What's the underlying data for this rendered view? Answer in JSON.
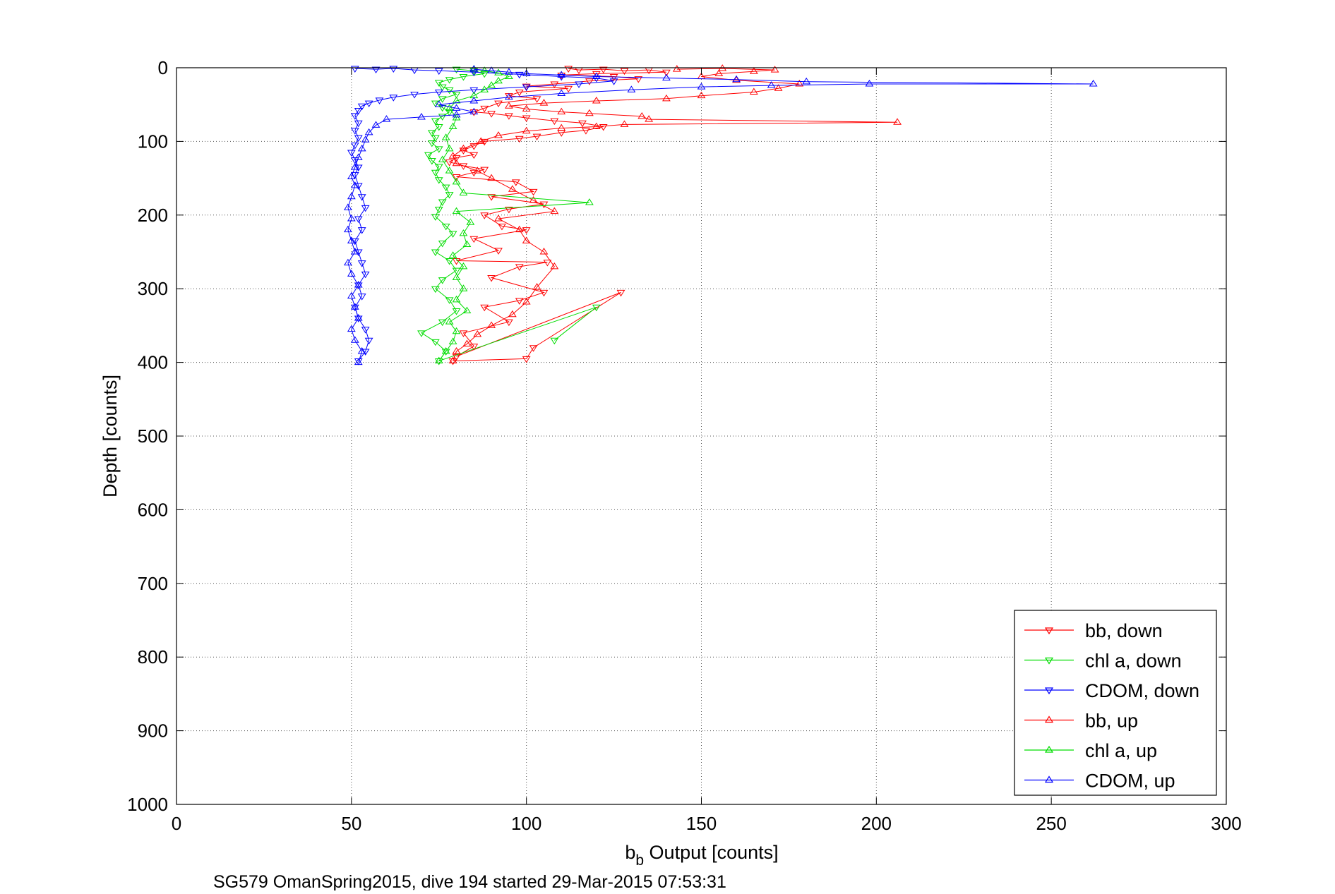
{
  "chart_data": {
    "type": "scatter",
    "title": "",
    "xlabel_main": "b",
    "xlabel_sub": "b",
    "xlabel_rest": " Output [counts]",
    "ylabel": "Depth [counts]",
    "caption": "SG579 OmanSpring2015, dive 194 started 29-Mar-2015 07:53:31",
    "xlim": [
      0,
      300
    ],
    "ylim": [
      0,
      1000
    ],
    "y_reversed": true,
    "grid": true,
    "legend_position": "bottom-right",
    "xticks": [
      "0",
      "50",
      "100",
      "150",
      "200",
      "250",
      "300"
    ],
    "yticks": [
      "0",
      "100",
      "200",
      "300",
      "400",
      "500",
      "600",
      "700",
      "800",
      "900",
      "1000"
    ],
    "series": [
      {
        "name": "bb, down",
        "color": "#ff0000",
        "marker": "triangle-down",
        "connected": true,
        "points": [
          [
            112,
            1
          ],
          [
            115,
            3
          ],
          [
            122,
            2
          ],
          [
            128,
            4
          ],
          [
            135,
            3
          ],
          [
            140,
            6
          ],
          [
            120,
            8
          ],
          [
            110,
            10
          ],
          [
            125,
            12
          ],
          [
            132,
            15
          ],
          [
            118,
            18
          ],
          [
            108,
            22
          ],
          [
            100,
            25
          ],
          [
            112,
            28
          ],
          [
            98,
            33
          ],
          [
            95,
            38
          ],
          [
            103,
            42
          ],
          [
            92,
            48
          ],
          [
            88,
            55
          ],
          [
            85,
            60
          ],
          [
            90,
            62
          ],
          [
            95,
            65
          ],
          [
            100,
            68
          ],
          [
            108,
            72
          ],
          [
            116,
            75
          ],
          [
            122,
            80
          ],
          [
            117,
            85
          ],
          [
            110,
            88
          ],
          [
            103,
            93
          ],
          [
            98,
            96
          ],
          [
            88,
            100
          ],
          [
            85,
            106
          ],
          [
            82,
            112
          ],
          [
            85,
            118
          ],
          [
            80,
            122
          ],
          [
            78,
            128
          ],
          [
            82,
            133
          ],
          [
            88,
            138
          ],
          [
            85,
            142
          ],
          [
            80,
            148
          ],
          [
            97,
            155
          ],
          [
            102,
            168
          ],
          [
            90,
            175
          ],
          [
            105,
            185
          ],
          [
            95,
            192
          ],
          [
            88,
            200
          ],
          [
            93,
            215
          ],
          [
            100,
            220
          ],
          [
            85,
            232
          ],
          [
            92,
            248
          ],
          [
            80,
            262
          ],
          [
            106,
            264
          ],
          [
            98,
            270
          ],
          [
            90,
            285
          ],
          [
            105,
            305
          ],
          [
            98,
            316
          ],
          [
            88,
            325
          ],
          [
            95,
            345
          ],
          [
            82,
            360
          ],
          [
            85,
            378
          ],
          [
            80,
            392
          ],
          [
            127,
            305
          ],
          [
            102,
            380
          ],
          [
            100,
            395
          ],
          [
            79,
            398
          ]
        ]
      },
      {
        "name": "chl a, down",
        "color": "#00dd00",
        "marker": "triangle-down",
        "connected": true,
        "points": [
          [
            80,
            2
          ],
          [
            85,
            4
          ],
          [
            88,
            8
          ],
          [
            82,
            12
          ],
          [
            78,
            16
          ],
          [
            75,
            20
          ],
          [
            76,
            26
          ],
          [
            78,
            30
          ],
          [
            80,
            36
          ],
          [
            76,
            42
          ],
          [
            74,
            48
          ],
          [
            76,
            54
          ],
          [
            78,
            60
          ],
          [
            76,
            66
          ],
          [
            74,
            72
          ],
          [
            75,
            80
          ],
          [
            73,
            88
          ],
          [
            74,
            95
          ],
          [
            73,
            102
          ],
          [
            75,
            110
          ],
          [
            72,
            118
          ],
          [
            73,
            126
          ],
          [
            75,
            134
          ],
          [
            74,
            142
          ],
          [
            75,
            152
          ],
          [
            77,
            162
          ],
          [
            78,
            172
          ],
          [
            76,
            182
          ],
          [
            75,
            192
          ],
          [
            74,
            202
          ],
          [
            77,
            215
          ],
          [
            79,
            225
          ],
          [
            76,
            238
          ],
          [
            74,
            250
          ],
          [
            78,
            262
          ],
          [
            80,
            275
          ],
          [
            76,
            288
          ],
          [
            74,
            300
          ],
          [
            78,
            315
          ],
          [
            80,
            330
          ],
          [
            76,
            345
          ],
          [
            70,
            360
          ],
          [
            74,
            372
          ],
          [
            77,
            385
          ],
          [
            75,
            398
          ],
          [
            120,
            325
          ],
          [
            108,
            370
          ]
        ]
      },
      {
        "name": "CDOM, down",
        "color": "#0000ff",
        "marker": "triangle-down",
        "connected": true,
        "points": [
          [
            51,
            1
          ],
          [
            57,
            2
          ],
          [
            62,
            1
          ],
          [
            68,
            3
          ],
          [
            75,
            4
          ],
          [
            85,
            6
          ],
          [
            98,
            9
          ],
          [
            110,
            12
          ],
          [
            120,
            14
          ],
          [
            125,
            18
          ],
          [
            115,
            22
          ],
          [
            100,
            26
          ],
          [
            85,
            30
          ],
          [
            75,
            33
          ],
          [
            68,
            36
          ],
          [
            62,
            40
          ],
          [
            58,
            44
          ],
          [
            55,
            48
          ],
          [
            53,
            52
          ],
          [
            52,
            58
          ],
          [
            51,
            65
          ],
          [
            52,
            75
          ],
          [
            51,
            85
          ],
          [
            52,
            95
          ],
          [
            51,
            105
          ],
          [
            50,
            115
          ],
          [
            51,
            125
          ],
          [
            52,
            135
          ],
          [
            51,
            145
          ],
          [
            52,
            160
          ],
          [
            53,
            175
          ],
          [
            54,
            190
          ],
          [
            52,
            205
          ],
          [
            53,
            220
          ],
          [
            51,
            235
          ],
          [
            52,
            250
          ],
          [
            53,
            265
          ],
          [
            54,
            280
          ],
          [
            52,
            295
          ],
          [
            53,
            310
          ],
          [
            51,
            325
          ],
          [
            52,
            340
          ],
          [
            54,
            355
          ],
          [
            55,
            370
          ],
          [
            54,
            385
          ],
          [
            52,
            398
          ]
        ]
      },
      {
        "name": "bb, up",
        "color": "#ff0000",
        "marker": "triangle-up",
        "connected": true,
        "points": [
          [
            79,
            398
          ],
          [
            80,
            385
          ],
          [
            83,
            375
          ],
          [
            86,
            362
          ],
          [
            90,
            350
          ],
          [
            96,
            335
          ],
          [
            100,
            318
          ],
          [
            103,
            298
          ],
          [
            108,
            270
          ],
          [
            105,
            250
          ],
          [
            100,
            235
          ],
          [
            98,
            220
          ],
          [
            92,
            205
          ],
          [
            108,
            195
          ],
          [
            102,
            180
          ],
          [
            96,
            165
          ],
          [
            90,
            150
          ],
          [
            86,
            140
          ],
          [
            80,
            130
          ],
          [
            79,
            120
          ],
          [
            82,
            110
          ],
          [
            87,
            100
          ],
          [
            92,
            92
          ],
          [
            100,
            86
          ],
          [
            110,
            82
          ],
          [
            120,
            80
          ],
          [
            128,
            77
          ],
          [
            206,
            74
          ],
          [
            135,
            70
          ],
          [
            133,
            66
          ],
          [
            118,
            62
          ],
          [
            110,
            60
          ],
          [
            100,
            56
          ],
          [
            95,
            52
          ],
          [
            105,
            48
          ],
          [
            120,
            45
          ],
          [
            140,
            42
          ],
          [
            150,
            38
          ],
          [
            165,
            33
          ],
          [
            172,
            28
          ],
          [
            178,
            22
          ],
          [
            160,
            17
          ],
          [
            150,
            12
          ],
          [
            155,
            8
          ],
          [
            165,
            5
          ],
          [
            171,
            3
          ],
          [
            156,
            1
          ],
          [
            143,
            2
          ]
        ]
      },
      {
        "name": "chl a, up",
        "color": "#00dd00",
        "marker": "triangle-up",
        "connected": true,
        "points": [
          [
            75,
            398
          ],
          [
            77,
            385
          ],
          [
            79,
            372
          ],
          [
            80,
            358
          ],
          [
            78,
            345
          ],
          [
            83,
            330
          ],
          [
            80,
            315
          ],
          [
            82,
            300
          ],
          [
            80,
            285
          ],
          [
            82,
            270
          ],
          [
            79,
            255
          ],
          [
            83,
            240
          ],
          [
            82,
            225
          ],
          [
            84,
            210
          ],
          [
            80,
            195
          ],
          [
            118,
            183
          ],
          [
            82,
            170
          ],
          [
            80,
            155
          ],
          [
            78,
            140
          ],
          [
            76,
            125
          ],
          [
            78,
            110
          ],
          [
            77,
            95
          ],
          [
            79,
            80
          ],
          [
            80,
            68
          ],
          [
            78,
            55
          ],
          [
            80,
            45
          ],
          [
            85,
            38
          ],
          [
            88,
            30
          ],
          [
            90,
            24
          ],
          [
            92,
            18
          ],
          [
            95,
            12
          ],
          [
            92,
            7
          ],
          [
            88,
            4
          ],
          [
            85,
            2
          ]
        ]
      },
      {
        "name": "CDOM, up",
        "color": "#0000ff",
        "marker": "triangle-up",
        "connected": true,
        "points": [
          [
            52,
            400
          ],
          [
            53,
            385
          ],
          [
            51,
            370
          ],
          [
            50,
            355
          ],
          [
            52,
            340
          ],
          [
            51,
            325
          ],
          [
            50,
            310
          ],
          [
            52,
            295
          ],
          [
            50,
            280
          ],
          [
            49,
            265
          ],
          [
            51,
            250
          ],
          [
            50,
            235
          ],
          [
            49,
            220
          ],
          [
            50,
            205
          ],
          [
            49,
            190
          ],
          [
            50,
            175
          ],
          [
            51,
            160
          ],
          [
            50,
            148
          ],
          [
            51,
            135
          ],
          [
            52,
            122
          ],
          [
            53,
            110
          ],
          [
            54,
            98
          ],
          [
            55,
            88
          ],
          [
            57,
            78
          ],
          [
            60,
            70
          ],
          [
            70,
            67
          ],
          [
            80,
            64
          ],
          [
            85,
            60
          ],
          [
            80,
            55
          ],
          [
            75,
            50
          ],
          [
            85,
            45
          ],
          [
            95,
            40
          ],
          [
            110,
            35
          ],
          [
            130,
            30
          ],
          [
            150,
            26
          ],
          [
            170,
            24
          ],
          [
            198,
            22
          ],
          [
            262,
            22
          ],
          [
            180,
            19
          ],
          [
            160,
            16
          ],
          [
            140,
            14
          ],
          [
            120,
            12
          ],
          [
            110,
            10
          ],
          [
            100,
            8
          ],
          [
            95,
            6
          ],
          [
            90,
            4
          ],
          [
            85,
            2
          ]
        ]
      }
    ]
  }
}
